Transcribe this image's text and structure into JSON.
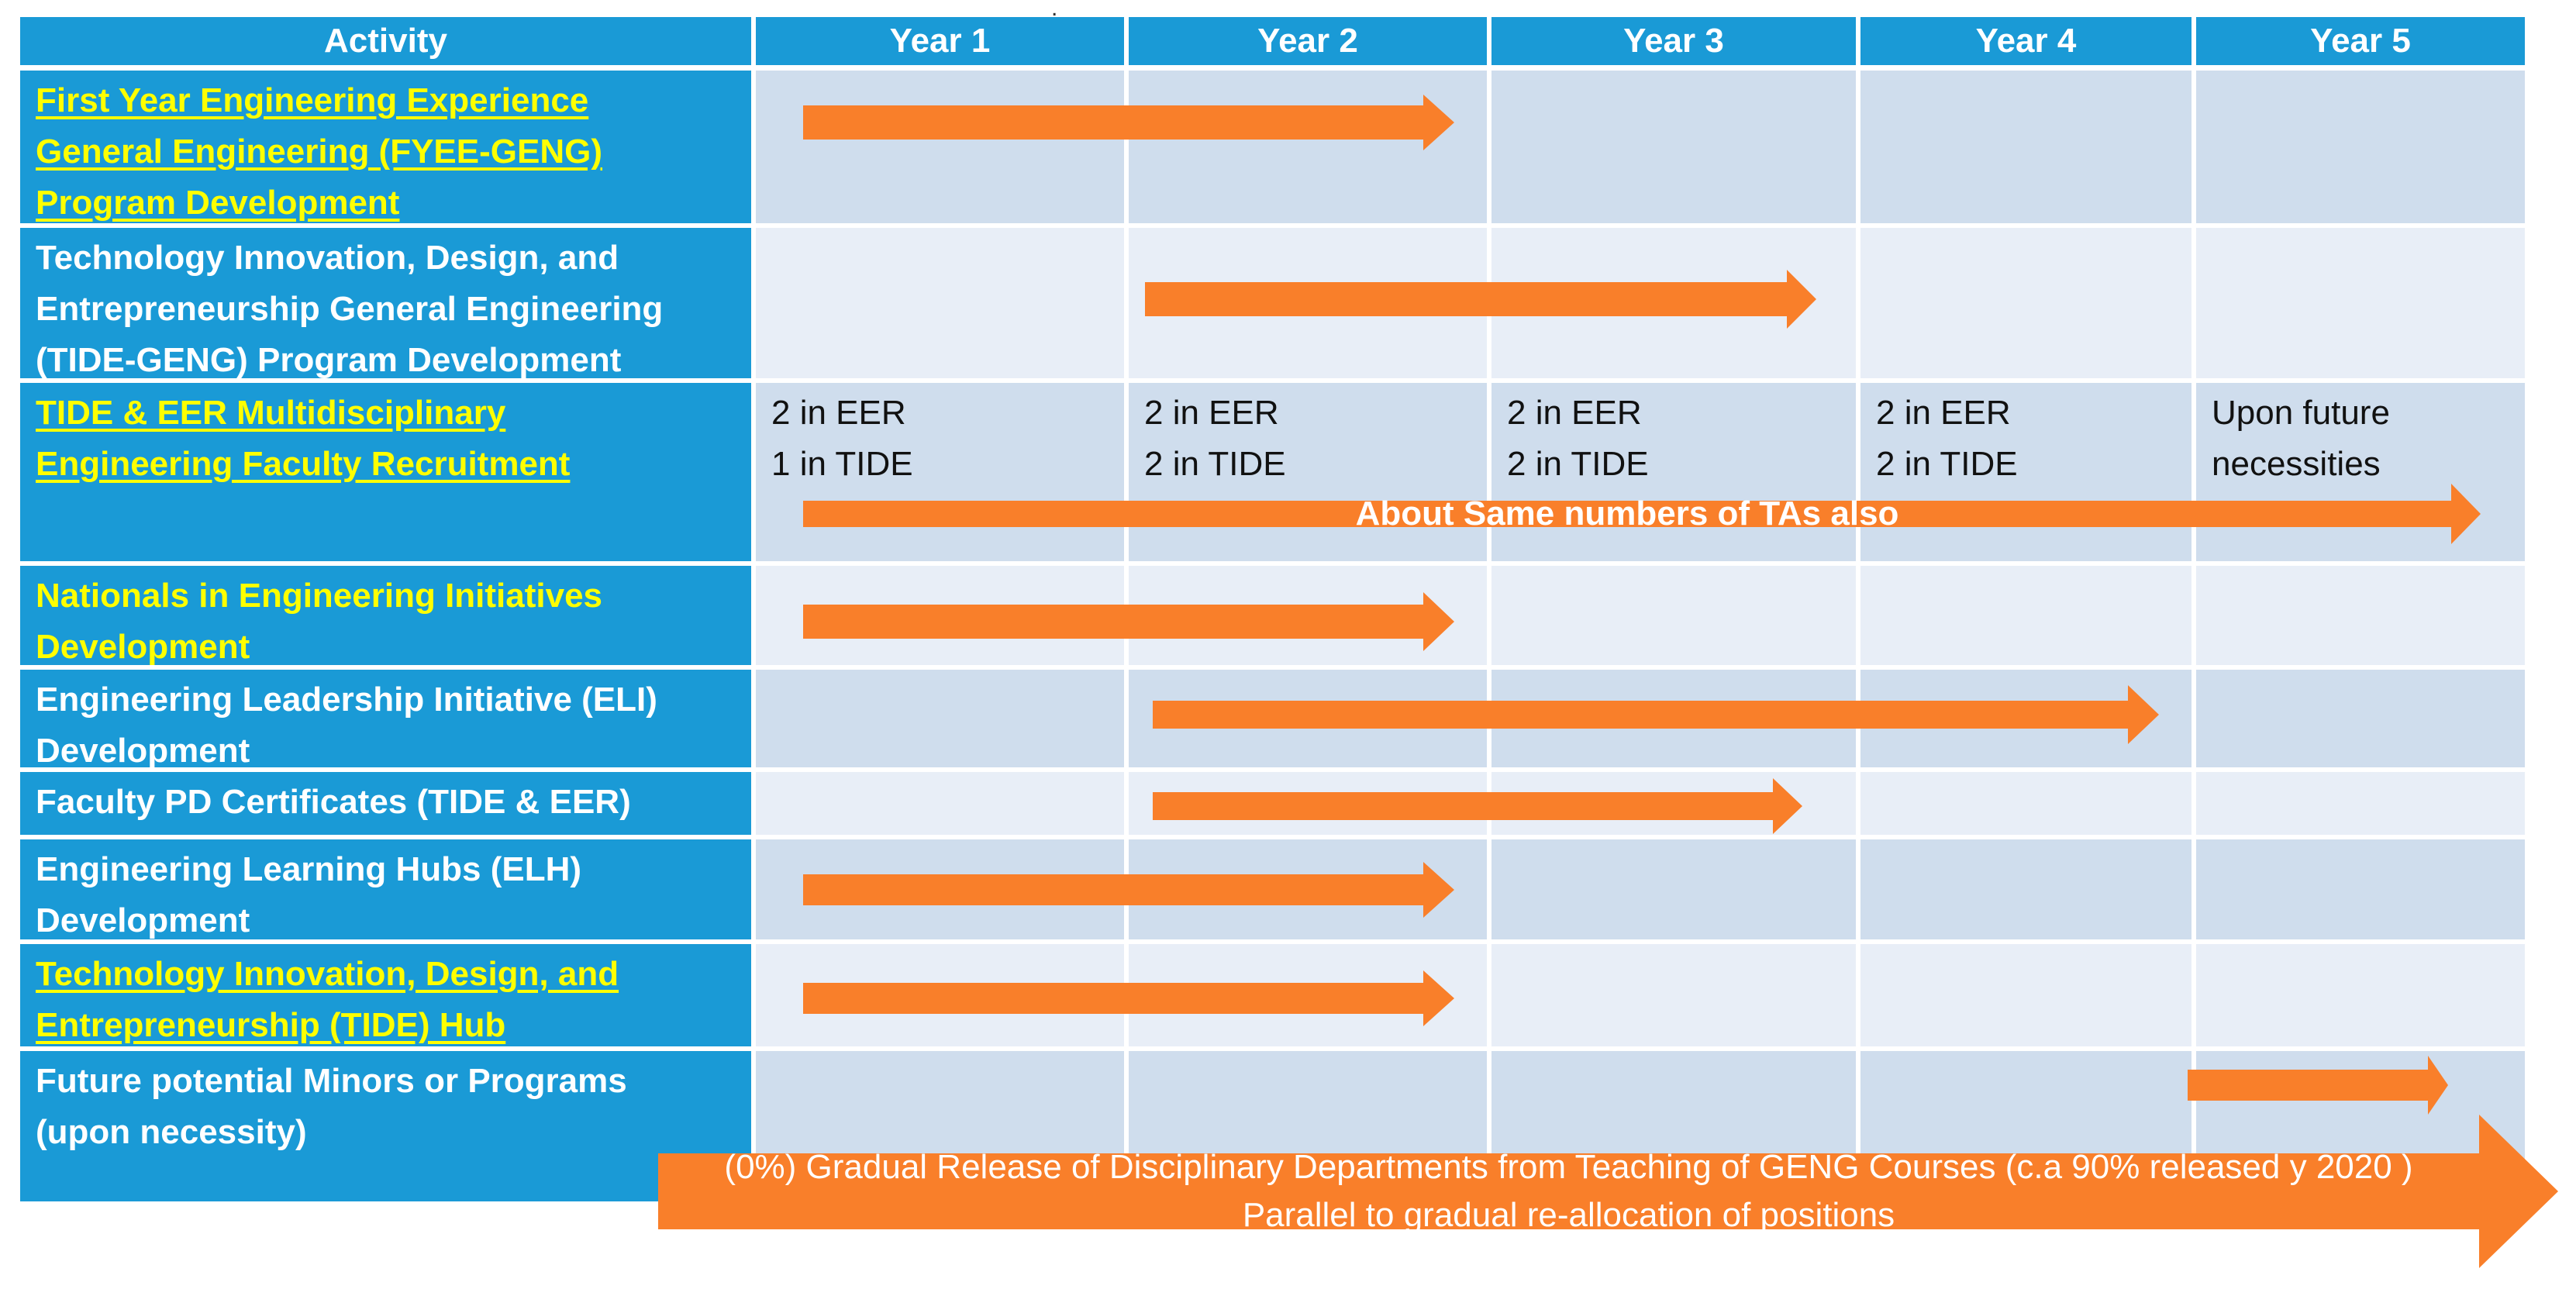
{
  "header": {
    "activity": "Activity",
    "years": [
      "Year 1",
      "Year 2",
      "Year 3",
      "Year 4",
      "Year 5"
    ]
  },
  "rows": [
    {
      "label": "First Year Engineering Experience\nGeneral Engineering (FYEE-GENG)\nProgram Development",
      "highlight": true,
      "underline": true
    },
    {
      "label": "Technology Innovation, Design, and\nEntrepreneurship General Engineering\n(TIDE-GENG) Program Development",
      "highlight": false,
      "underline": false
    },
    {
      "label": "TIDE & EER Multidisciplinary\nEngineering Faculty Recruitment",
      "highlight": true,
      "underline": true
    },
    {
      "label": "Nationals in Engineering Initiatives\nDevelopment",
      "highlight": true,
      "underline": false
    },
    {
      "label": "Engineering Leadership Initiative (ELI)\nDevelopment",
      "highlight": false,
      "underline": false
    },
    {
      "label": "Faculty PD Certificates (TIDE & EER)",
      "highlight": false,
      "underline": false
    },
    {
      "label": "Engineering Learning Hubs (ELH)\nDevelopment",
      "highlight": false,
      "underline": false
    },
    {
      "label": "Technology Innovation, Design, and\nEntrepreneurship (TIDE) Hub",
      "highlight": true,
      "underline": true
    },
    {
      "label": "Future potential Minors or Programs\n(upon necessity)",
      "highlight": false,
      "underline": false
    }
  ],
  "recruitment_notes": [
    "2 in EER\n1 in TIDE",
    "2 in EER\n2 in TIDE",
    "2 in EER\n2 in TIDE",
    "2 in EER\n2 in TIDE",
    "Upon future\nnecessities"
  ],
  "recruitment_arrow_label": "About Same numbers of TAs also",
  "release_arrow_label": "(0%) Gradual Release of Disciplinary Departments from Teaching of GENG Courses (c.a 90% released y 2020 )\nParallel to gradual re-allocation of positions",
  "stray_mark": ".",
  "colors": {
    "header_bg": "#1a9ad6",
    "row_dark": "#cfdded",
    "row_light": "#e8eef7",
    "highlight_text": "#ffff00",
    "arrow": "#f97f2a"
  }
}
